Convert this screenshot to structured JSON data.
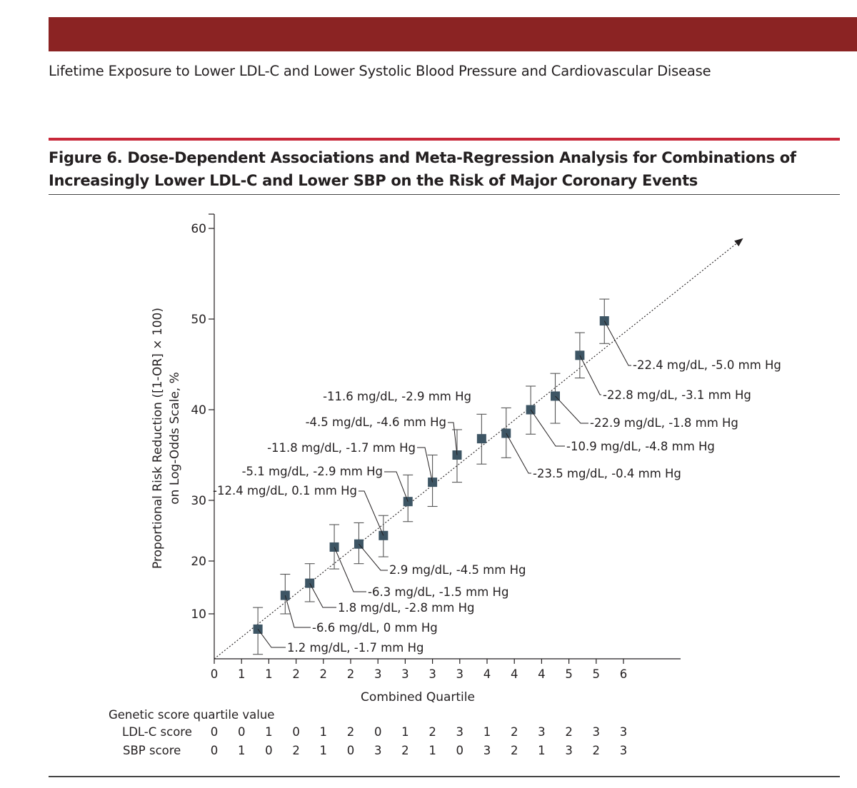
{
  "header": {
    "running_title": "Lifetime Exposure to Lower LDL-C and Lower Systolic Blood Pressure and Cardiovascular Disease",
    "figure_title": "Figure 6. Dose-Dependent Associations and Meta-Regression Analysis for Combinations of Increasingly Lower LDL-C and Lower SBP on the Risk of Major Coronary Events"
  },
  "colors": {
    "banner": "#8b2323",
    "rule": "#c8283a",
    "marker": "#3d5564"
  },
  "chart_data": {
    "type": "scatter",
    "title": "",
    "xlabel": "Combined Quartile",
    "ylabel_line1": "Proportional Risk Reduction ([1-OR] × 100)",
    "ylabel_line2": "on Log-Odds Scale, %",
    "y_ticks": [
      10,
      20,
      30,
      40,
      50,
      60
    ],
    "x_tick_labels": [
      "0",
      "1",
      "1",
      "2",
      "2",
      "2",
      "3",
      "3",
      "3",
      "3",
      "4",
      "4",
      "4",
      "5",
      "5",
      "6"
    ],
    "ylim": [
      5,
      63
    ],
    "grid": false,
    "trend_line": "dotted arrow",
    "points": [
      {
        "x": 1.6,
        "y": 8.3,
        "lo": 5.5,
        "hi": 11.2,
        "label": "1.2 mg/dL, -1.7 mm Hg"
      },
      {
        "x": 2.6,
        "y": 13.5,
        "lo": 10.0,
        "hi": 17.5,
        "label": "-6.6 mg/dL, 0 mm Hg"
      },
      {
        "x": 3.5,
        "y": 15.8,
        "lo": 12.3,
        "hi": 19.5,
        "label": "1.8 mg/dL, -2.8 mm Hg"
      },
      {
        "x": 4.4,
        "y": 22.3,
        "lo": 18.5,
        "hi": 26.0,
        "label": "-6.3 mg/dL, -1.5 mm Hg"
      },
      {
        "x": 5.3,
        "y": 22.8,
        "lo": 19.5,
        "hi": 26.3,
        "label": "2.9 mg/dL, -4.5 mm Hg"
      },
      {
        "x": 6.2,
        "y": 24.2,
        "lo": 20.7,
        "hi": 27.5,
        "label": "-12.4 mg/dL, 0.1 mm Hg"
      },
      {
        "x": 7.1,
        "y": 29.8,
        "lo": 26.5,
        "hi": 32.8,
        "label": "-5.1 mg/dL, -2.9 mm Hg"
      },
      {
        "x": 8.0,
        "y": 32.0,
        "lo": 29.0,
        "hi": 35.0,
        "label": "-11.8 mg/dL, -1.7 mm Hg"
      },
      {
        "x": 8.9,
        "y": 35.0,
        "lo": 32.0,
        "hi": 37.8,
        "label": "-4.5 mg/dL, -4.6 mm Hg"
      },
      {
        "x": 9.8,
        "y": 36.8,
        "lo": 34.0,
        "hi": 39.5,
        "label": "-11.6 mg/dL, -2.9 mm Hg"
      },
      {
        "x": 10.7,
        "y": 37.4,
        "lo": 34.7,
        "hi": 40.2,
        "label": "-23.5 mg/dL, -0.4 mm Hg"
      },
      {
        "x": 11.6,
        "y": 40.0,
        "lo": 37.3,
        "hi": 42.6,
        "label": "-10.9 mg/dL, -4.8 mm Hg"
      },
      {
        "x": 12.5,
        "y": 41.5,
        "lo": 38.5,
        "hi": 44.0,
        "label": "-22.9 mg/dL, -1.8 mm Hg"
      },
      {
        "x": 13.4,
        "y": 46.0,
        "lo": 43.5,
        "hi": 48.5,
        "label": "-22.8 mg/dL, -3.1 mm Hg"
      },
      {
        "x": 14.3,
        "y": 49.8,
        "lo": 47.3,
        "hi": 52.2,
        "label": "-22.4 mg/dL, -5.0 mm Hg"
      }
    ]
  },
  "table": {
    "heading": "Genetic score quartile value",
    "rows": [
      {
        "label": "LDL-C score",
        "values": [
          "0",
          "0",
          "1",
          "0",
          "1",
          "2",
          "0",
          "1",
          "2",
          "3",
          "1",
          "2",
          "3",
          "2",
          "3",
          "3"
        ]
      },
      {
        "label": "SBP score",
        "values": [
          "0",
          "1",
          "0",
          "2",
          "1",
          "0",
          "3",
          "2",
          "1",
          "0",
          "3",
          "2",
          "1",
          "3",
          "2",
          "3"
        ]
      }
    ]
  }
}
